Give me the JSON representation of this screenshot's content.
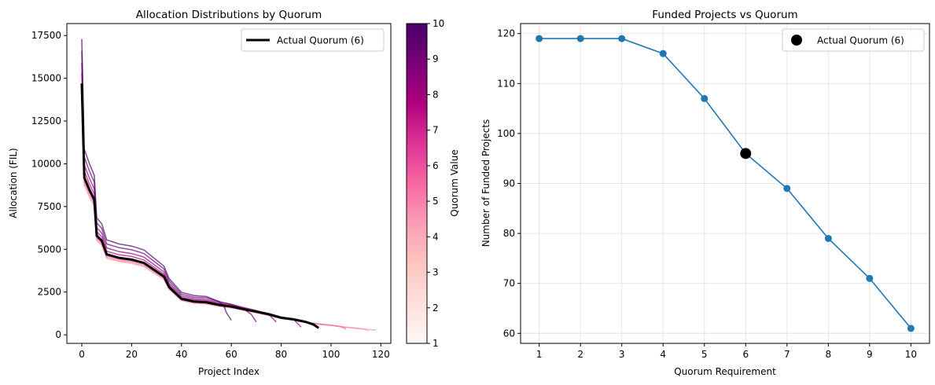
{
  "chart_data": [
    {
      "type": "line",
      "title": "Allocation Distributions by Quorum",
      "xlabel": "Project Index",
      "ylabel": "Allocation (FIL)",
      "xlim": [
        -6,
        124
      ],
      "ylim": [
        -500,
        18200
      ],
      "xticks": [
        0,
        20,
        40,
        60,
        80,
        100,
        120
      ],
      "yticks": [
        0,
        2500,
        5000,
        7500,
        10000,
        12500,
        15000,
        17500
      ],
      "grid": false,
      "legend": {
        "position": "top-right",
        "entries": [
          "Actual Quorum (6)"
        ]
      },
      "colorbar": {
        "label": "Quorum Value",
        "colormap": "RdPu",
        "range": [
          1,
          10
        ],
        "ticks": [
          1,
          2,
          3,
          4,
          5,
          6,
          7,
          8,
          9,
          10
        ]
      },
      "series": [
        {
          "quorum": 1,
          "color": "#fde0dd",
          "x": [
            0,
            1,
            3,
            5,
            6,
            8,
            10,
            15,
            20,
            25,
            28,
            32,
            33,
            35,
            40,
            45,
            50,
            55,
            60,
            65,
            70,
            75,
            80,
            85,
            90,
            95,
            100,
            105,
            110,
            115,
            118
          ],
          "y": [
            14000,
            8740,
            8080,
            7500,
            5510,
            5230,
            4470,
            4280,
            4180,
            3990,
            3700,
            3330,
            3230,
            2660,
            2000,
            1850,
            1800,
            1660,
            1570,
            1430,
            1280,
            1140,
            950,
            860,
            710,
            620,
            550,
            460,
            380,
            310,
            280
          ]
        },
        {
          "quorum": 2,
          "color": "#fcc5c0",
          "x": [
            0,
            1,
            3,
            5,
            6,
            8,
            10,
            15,
            20,
            25,
            28,
            32,
            33,
            35,
            40,
            45,
            50,
            55,
            60,
            65,
            70,
            75,
            80,
            85,
            90,
            95,
            100,
            105,
            110,
            115,
            118
          ],
          "y": [
            14000,
            8740,
            8080,
            7500,
            5510,
            5230,
            4470,
            4280,
            4180,
            3990,
            3700,
            3330,
            3230,
            2660,
            2000,
            1850,
            1800,
            1660,
            1570,
            1430,
            1280,
            1140,
            950,
            860,
            710,
            620,
            550,
            460,
            380,
            310,
            280
          ]
        },
        {
          "quorum": 3,
          "color": "#fbb0ba",
          "x": [
            0,
            1,
            3,
            5,
            6,
            8,
            10,
            15,
            20,
            25,
            28,
            32,
            33,
            35,
            40,
            45,
            50,
            55,
            60,
            65,
            70,
            75,
            80,
            85,
            90,
            95,
            100,
            105,
            110,
            115,
            118
          ],
          "y": [
            14000,
            8740,
            8080,
            7500,
            5510,
            5230,
            4470,
            4280,
            4180,
            3990,
            3700,
            3330,
            3230,
            2660,
            2000,
            1850,
            1800,
            1660,
            1570,
            1430,
            1280,
            1140,
            950,
            860,
            710,
            620,
            550,
            460,
            380,
            310,
            280
          ]
        },
        {
          "quorum": 4,
          "color": "#f98cb0",
          "x": [
            0,
            1,
            3,
            5,
            6,
            8,
            10,
            15,
            20,
            25,
            28,
            32,
            33,
            35,
            40,
            45,
            50,
            55,
            60,
            65,
            70,
            75,
            80,
            85,
            90,
            95,
            100,
            105,
            110,
            113,
            115
          ],
          "y": [
            14200,
            8880,
            8200,
            7620,
            5600,
            5310,
            4540,
            4340,
            4250,
            4050,
            3760,
            3380,
            3280,
            2700,
            2030,
            1880,
            1830,
            1690,
            1590,
            1450,
            1300,
            1160,
            970,
            870,
            720,
            630,
            560,
            460,
            390,
            340,
            250
          ]
        },
        {
          "quorum": 5,
          "color": "#f268a5",
          "x": [
            0,
            1,
            3,
            5,
            6,
            8,
            10,
            15,
            20,
            25,
            28,
            32,
            33,
            35,
            40,
            45,
            50,
            55,
            60,
            65,
            70,
            75,
            80,
            85,
            90,
            95,
            100,
            104,
            106
          ],
          "y": [
            14400,
            9000,
            8330,
            7740,
            5680,
            5390,
            4610,
            4410,
            4310,
            4120,
            3820,
            3430,
            3330,
            2740,
            2060,
            1910,
            1860,
            1720,
            1620,
            1470,
            1320,
            1180,
            980,
            880,
            740,
            640,
            560,
            480,
            330
          ]
        },
        {
          "quorum": 6,
          "color": "#dd3497",
          "x": [
            0,
            1,
            3,
            5,
            6,
            8,
            10,
            15,
            20,
            25,
            28,
            32,
            33,
            35,
            40,
            45,
            50,
            55,
            60,
            65,
            70,
            75,
            80,
            85,
            90,
            93,
            95
          ],
          "y": [
            14700,
            9200,
            8500,
            7900,
            5800,
            5500,
            4700,
            4500,
            4400,
            4200,
            3900,
            3500,
            3400,
            2800,
            2100,
            1950,
            1900,
            1750,
            1650,
            1500,
            1350,
            1200,
            1000,
            900,
            750,
            600,
            400
          ]
        },
        {
          "quorum": 7,
          "color": "#ae017e",
          "x": [
            0,
            1,
            3,
            5,
            6,
            8,
            10,
            15,
            20,
            25,
            28,
            32,
            33,
            35,
            40,
            45,
            50,
            55,
            60,
            65,
            70,
            75,
            80,
            85,
            88
          ],
          "y": [
            15300,
            9570,
            8840,
            8220,
            6030,
            5720,
            4890,
            4680,
            4580,
            4370,
            4060,
            3640,
            3540,
            2910,
            2180,
            2030,
            1980,
            1820,
            1720,
            1560,
            1400,
            1250,
            1040,
            900,
            450
          ]
        },
        {
          "quorum": 8,
          "color": "#8c017a",
          "x": [
            0,
            1,
            3,
            5,
            6,
            8,
            10,
            15,
            20,
            25,
            28,
            32,
            33,
            35,
            40,
            45,
            50,
            55,
            60,
            65,
            70,
            75,
            78
          ],
          "y": [
            15900,
            9940,
            9180,
            8530,
            6260,
            5940,
            5080,
            4860,
            4750,
            4540,
            4210,
            3780,
            3670,
            3020,
            2270,
            2110,
            2050,
            1890,
            1780,
            1600,
            1420,
            1200,
            750
          ]
        },
        {
          "quorum": 9,
          "color": "#6a0173",
          "x": [
            0,
            1,
            3,
            5,
            6,
            8,
            10,
            15,
            20,
            25,
            28,
            32,
            33,
            35,
            40,
            45,
            50,
            55,
            60,
            65,
            68,
            70
          ],
          "y": [
            16600,
            10400,
            9600,
            8930,
            6550,
            6220,
            5310,
            5090,
            4970,
            4750,
            4410,
            3960,
            3840,
            3160,
            2370,
            2200,
            2150,
            1950,
            1780,
            1500,
            1200,
            750
          ]
        },
        {
          "quorum": 10,
          "color": "#49006a",
          "x": [
            0,
            1,
            3,
            5,
            6,
            8,
            10,
            15,
            20,
            25,
            28,
            32,
            33,
            35,
            40,
            45,
            50,
            55,
            57,
            58,
            60
          ],
          "y": [
            17300,
            10850,
            10030,
            9320,
            6840,
            6490,
            5550,
            5310,
            5190,
            4960,
            4600,
            4130,
            4010,
            3300,
            2480,
            2300,
            2240,
            1950,
            1700,
            1300,
            850
          ]
        }
      ],
      "highlight": {
        "name": "Actual Quorum (6)",
        "color": "#000000",
        "quorum": 6
      }
    },
    {
      "type": "line",
      "title": "Funded Projects vs Quorum",
      "xlabel": "Quorum Requirement",
      "ylabel": "Number of Funded Projects",
      "xlim": [
        0.55,
        10.45
      ],
      "ylim": [
        58,
        122
      ],
      "xticks": [
        1,
        2,
        3,
        4,
        5,
        6,
        7,
        8,
        9,
        10
      ],
      "yticks": [
        60,
        70,
        80,
        90,
        100,
        110,
        120
      ],
      "grid": true,
      "legend": {
        "position": "top-right",
        "entries": [
          "Actual Quorum (6)"
        ]
      },
      "x": [
        1,
        2,
        3,
        4,
        5,
        6,
        7,
        8,
        9,
        10
      ],
      "values": [
        119,
        119,
        119,
        116,
        107,
        96,
        89,
        79,
        71,
        61
      ],
      "line_color": "#1f77b4",
      "highlight": {
        "name": "Actual Quorum (6)",
        "x": 6,
        "y": 96,
        "color": "#000000"
      }
    }
  ]
}
